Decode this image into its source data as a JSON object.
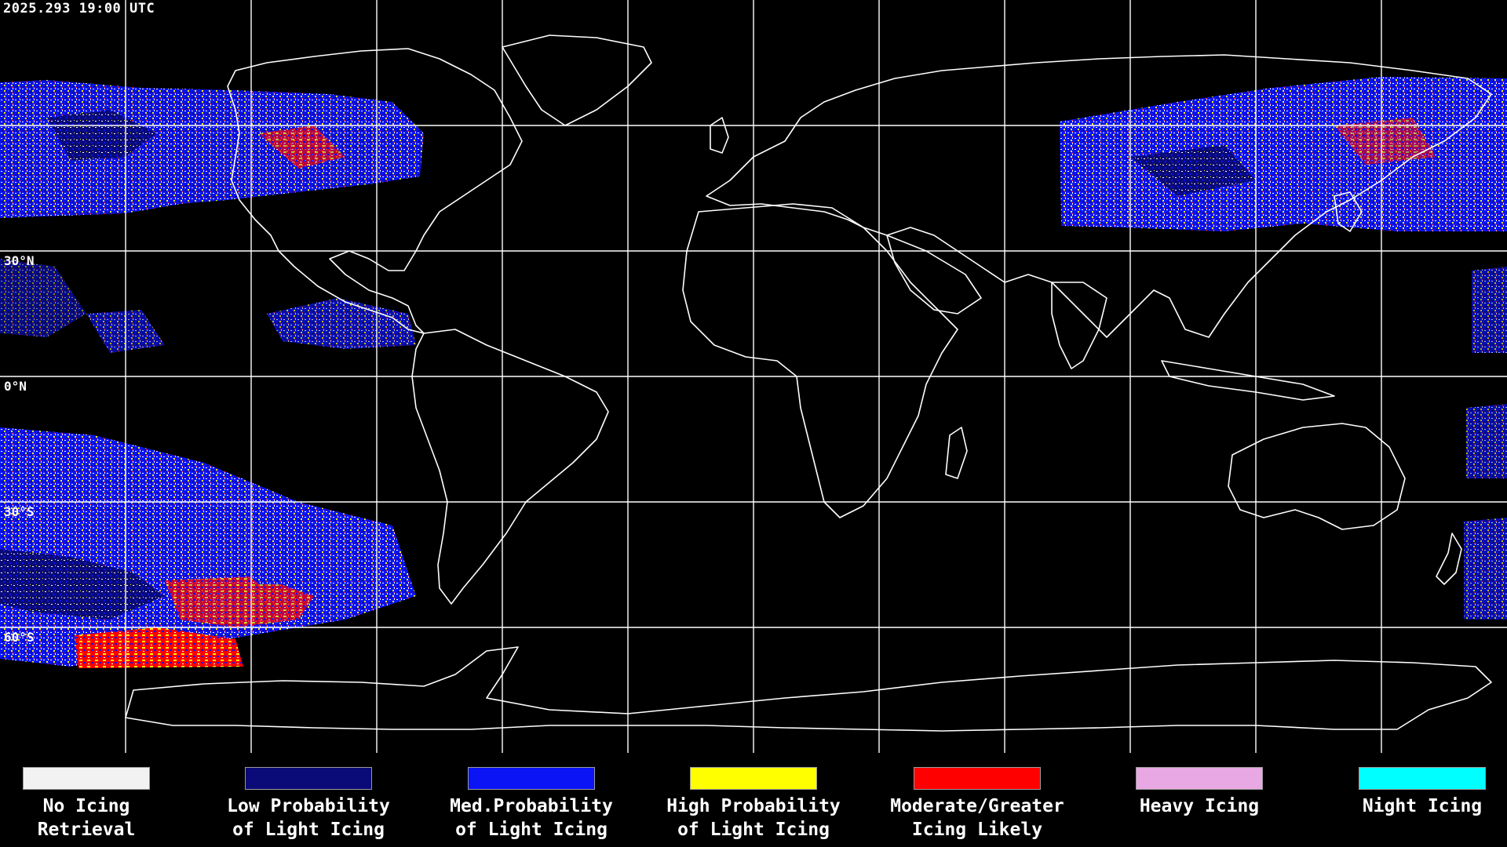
{
  "header": {
    "timestamp": "2025.293 19:00 UTC"
  },
  "latitude_labels": [
    "30°N",
    "0°N",
    "30°S",
    "60°S"
  ],
  "legend": [
    {
      "label": "No Icing\nRetrieval",
      "color": "#f2f2f2"
    },
    {
      "label": "Low Probability\nof Light Icing",
      "color": "#0a0a78"
    },
    {
      "label": "Med.Probability\nof Light Icing",
      "color": "#0a14f5"
    },
    {
      "label": "High Probability\nof Light Icing",
      "color": "#ffff00"
    },
    {
      "label": "Moderate/Greater\nIcing Likely",
      "color": "#ff0000"
    },
    {
      "label": "Heavy Icing",
      "color": "#e8a8e4"
    },
    {
      "label": "Night Icing",
      "color": "#00ffff"
    }
  ],
  "colors": {
    "gridline": "#ffffff",
    "coastline": "#ffffff",
    "background": "#000000"
  }
}
